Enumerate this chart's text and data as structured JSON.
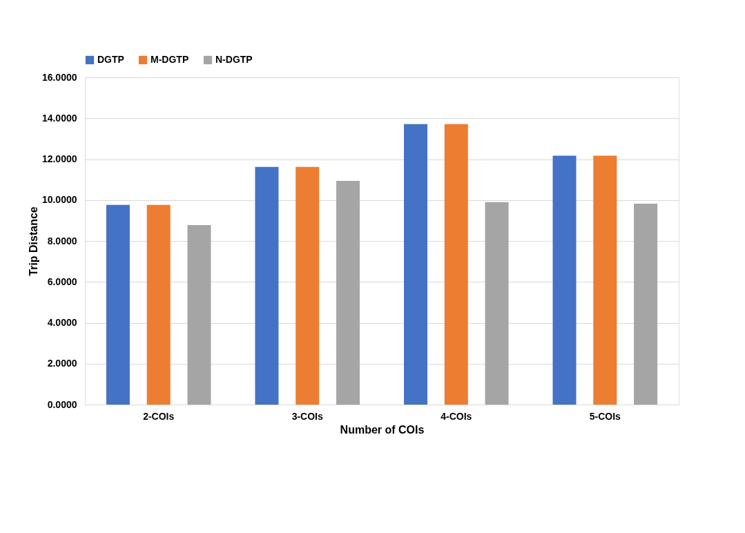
{
  "chart_data": {
    "type": "bar",
    "xlabel": "Number of COIs",
    "ylabel": "Trip Distance",
    "categories": [
      "2-COIs",
      "3-COIs",
      "4-COIs",
      "5-COIs"
    ],
    "series": [
      {
        "name": "DGTP",
        "color": "#4472c4",
        "values": [
          9.76,
          11.62,
          13.71,
          12.17
        ]
      },
      {
        "name": "M-DGTP",
        "color": "#ed7d31",
        "values": [
          9.76,
          11.62,
          13.71,
          12.17
        ]
      },
      {
        "name": "N-DGTP",
        "color": "#a5a5a5",
        "values": [
          8.78,
          10.94,
          9.9,
          9.82
        ]
      }
    ],
    "ylim": [
      0,
      16
    ],
    "yticks": [
      {
        "value": 0,
        "label": "0.0000"
      },
      {
        "value": 2,
        "label": "2.0000"
      },
      {
        "value": 4,
        "label": "4.0000"
      },
      {
        "value": 6,
        "label": "6.0000"
      },
      {
        "value": 8,
        "label": "8.0000"
      },
      {
        "value": 10,
        "label": "10.0000"
      },
      {
        "value": 12,
        "label": "12.0000"
      },
      {
        "value": 14,
        "label": "14.0000"
      },
      {
        "value": 16,
        "label": "16.0000"
      }
    ],
    "grid": "y",
    "legend": "top"
  }
}
